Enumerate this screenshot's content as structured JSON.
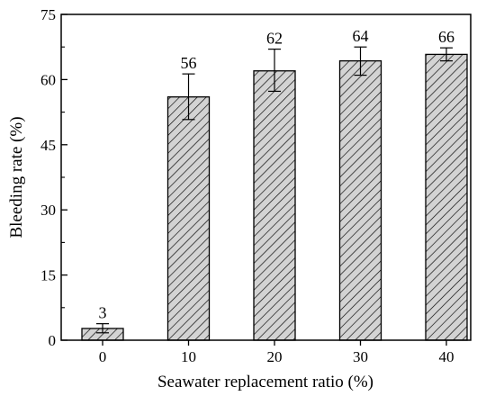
{
  "chart_data": {
    "type": "bar",
    "title": "",
    "xlabel": "Seawater replacement ratio (%)",
    "ylabel": "Bleeding rate (%)",
    "categories": [
      "0",
      "10",
      "20",
      "30",
      "40"
    ],
    "values": [
      2.7,
      56.0,
      62.0,
      64.3,
      65.8
    ],
    "data_labels": [
      "3",
      "56",
      "62",
      "64",
      "66"
    ],
    "error_low": [
      1.7,
      50.8,
      57.3,
      61.0,
      64.3
    ],
    "error_high": [
      3.8,
      61.3,
      67.0,
      67.5,
      67.3
    ],
    "ylim": [
      0,
      75
    ],
    "yticks": [
      0,
      15,
      30,
      45,
      60,
      75
    ],
    "grid": false,
    "bar_fill": "#d3d3d3",
    "bar_hatch": "diagonal",
    "bar_edge": "#000000"
  }
}
